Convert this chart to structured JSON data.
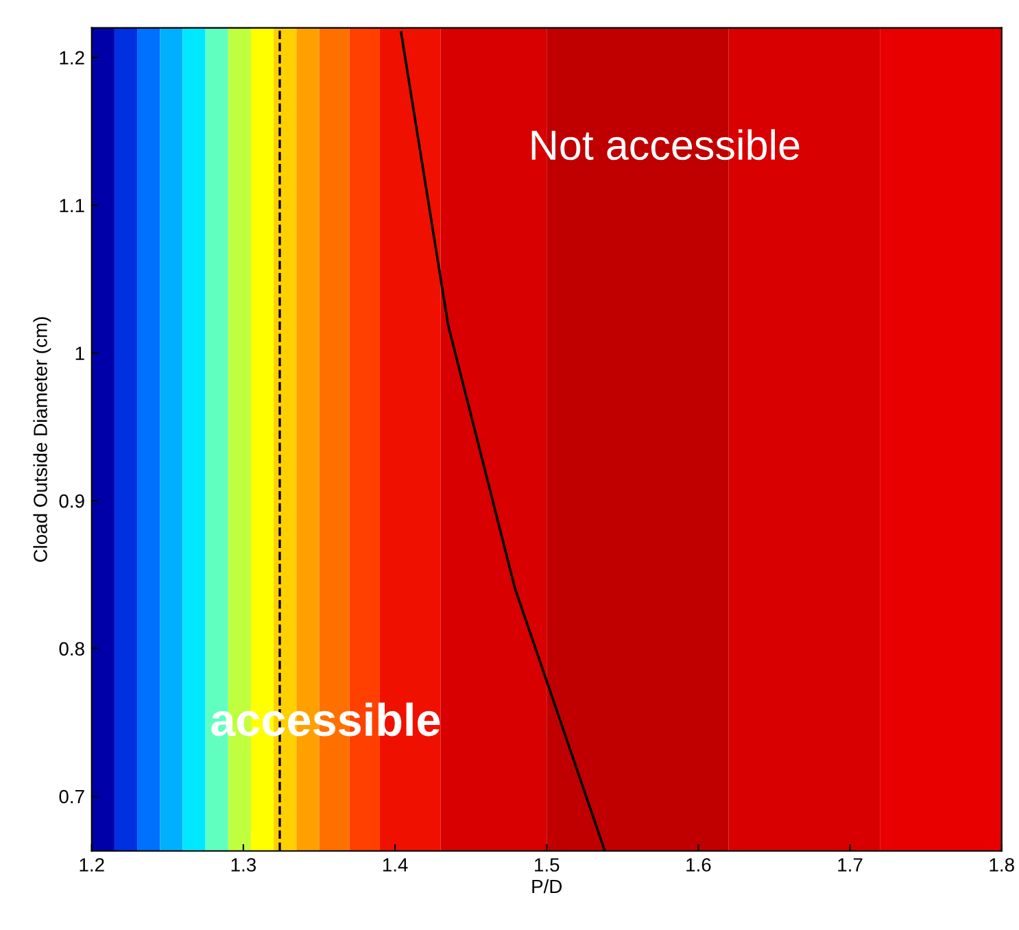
{
  "chart_data": {
    "type": "line",
    "xlabel": "P/D",
    "ylabel": "Cload Outside Diameter (cm)",
    "xlim": [
      1.2,
      1.8
    ],
    "ylim": [
      0.663,
      1.22
    ],
    "xticks": [
      1.2,
      1.3,
      1.4,
      1.5,
      1.6,
      1.7,
      1.8
    ],
    "yticks": [
      0.7,
      0.8,
      0.9,
      1,
      1.1,
      1.2
    ],
    "series": [
      {
        "color": "#000000",
        "x": [
          1.404,
          1.435,
          1.479,
          1.538
        ],
        "values": [
          1.217,
          1.019,
          0.841,
          0.664
        ]
      }
    ],
    "ref_lines": [
      {
        "axis": "x",
        "value": 1.324,
        "color": "#000000",
        "line_style": "dashed"
      }
    ],
    "bands": [
      {
        "axis": "x",
        "from": 1.2,
        "to": 1.215,
        "color": "#0000a8"
      },
      {
        "axis": "x",
        "from": 1.215,
        "to": 1.23,
        "color": "#0030e0"
      },
      {
        "axis": "x",
        "from": 1.23,
        "to": 1.245,
        "color": "#0070ff"
      },
      {
        "axis": "x",
        "from": 1.245,
        "to": 1.26,
        "color": "#00b0ff"
      },
      {
        "axis": "x",
        "from": 1.26,
        "to": 1.275,
        "color": "#00e8ff"
      },
      {
        "axis": "x",
        "from": 1.275,
        "to": 1.29,
        "color": "#60ffc0"
      },
      {
        "axis": "x",
        "from": 1.29,
        "to": 1.305,
        "color": "#c0ff40"
      },
      {
        "axis": "x",
        "from": 1.305,
        "to": 1.32,
        "color": "#ffff00"
      },
      {
        "axis": "x",
        "from": 1.32,
        "to": 1.335,
        "color": "#ffd000"
      },
      {
        "axis": "x",
        "from": 1.335,
        "to": 1.35,
        "color": "#ffa000"
      },
      {
        "axis": "x",
        "from": 1.35,
        "to": 1.37,
        "color": "#ff7000"
      },
      {
        "axis": "x",
        "from": 1.37,
        "to": 1.39,
        "color": "#ff4000"
      },
      {
        "axis": "x",
        "from": 1.39,
        "to": 1.43,
        "color": "#f01000"
      },
      {
        "axis": "x",
        "from": 1.43,
        "to": 1.5,
        "color": "#d80000"
      },
      {
        "axis": "x",
        "from": 1.5,
        "to": 1.62,
        "color": "#c00000"
      },
      {
        "axis": "x",
        "from": 1.62,
        "to": 1.72,
        "color": "#d80000"
      },
      {
        "axis": "x",
        "from": 1.72,
        "to": 1.8,
        "color": "#e80000"
      }
    ],
    "annotations": [
      "Not accessible",
      "accessible"
    ],
    "grid": false,
    "marker": "none",
    "line_style": "solid"
  }
}
